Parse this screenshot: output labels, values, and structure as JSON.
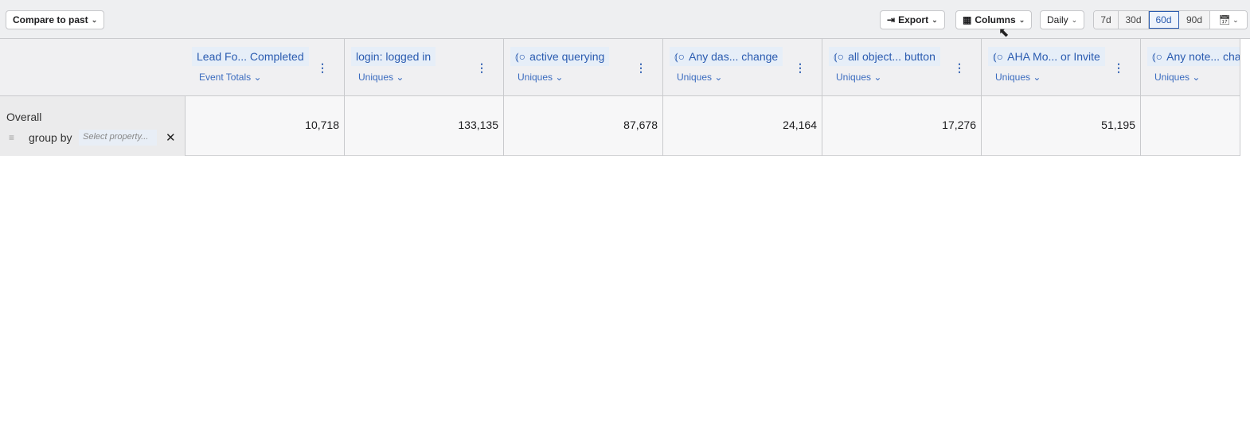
{
  "toolbar": {
    "compare_label": "Compare to past",
    "export_label": "Export",
    "columns_label": "Columns",
    "interval_label": "Daily",
    "ranges": [
      "7d",
      "30d",
      "60d",
      "90d"
    ],
    "active_range": "60d"
  },
  "row": {
    "label": "Overall",
    "group_by_label": "group by",
    "group_by_placeholder": "Select property..."
  },
  "columns": [
    {
      "title": "Lead Fo... Completed",
      "metric": "Event Totals",
      "value": "10,718",
      "custom": false
    },
    {
      "title": "login: logged in",
      "metric": "Uniques",
      "value": "133,135",
      "custom": false
    },
    {
      "title": "active querying",
      "metric": "Uniques",
      "value": "87,678",
      "custom": true
    },
    {
      "title": "Any das...  change",
      "metric": "Uniques",
      "value": "24,164",
      "custom": true
    },
    {
      "title": "all object...  button",
      "metric": "Uniques",
      "value": "17,276",
      "custom": true
    },
    {
      "title": "AHA Mo...  or Invite",
      "metric": "Uniques",
      "value": "51,195",
      "custom": true
    },
    {
      "title": "Any note... cha",
      "metric": "Uniques",
      "value": "",
      "custom": true
    }
  ]
}
